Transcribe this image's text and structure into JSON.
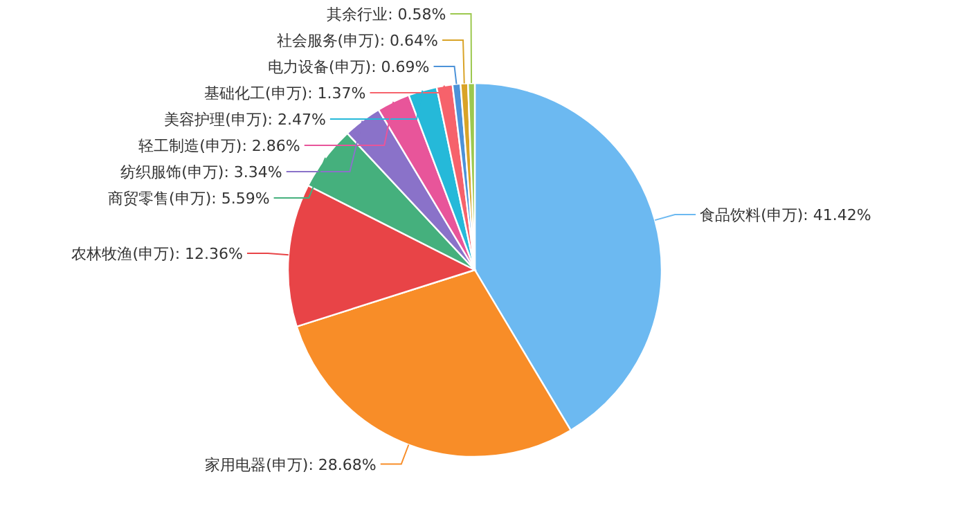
{
  "chart_data": {
    "type": "pie",
    "categories": [
      "食品饮料(申万)",
      "家用电器(申万)",
      "农林牧渔(申万)",
      "商贸零售(申万)",
      "纺织服饰(申万)",
      "轻工制造(申万)",
      "美容护理(申万)",
      "基础化工(申万)",
      "电力设备(申万)",
      "社会服务(申万)",
      "其余行业"
    ],
    "values": [
      41.42,
      28.68,
      12.36,
      5.59,
      3.34,
      2.86,
      2.47,
      1.37,
      0.69,
      0.64,
      0.58
    ],
    "colors": [
      "#6cb9f1",
      "#f88d28",
      "#e84447",
      "#45b07d",
      "#8a72c9",
      "#e8559a",
      "#25b9d9",
      "#f6626b",
      "#4c92d8",
      "#d9a327",
      "#9cc84e"
    ],
    "value_labels": [
      ": 41.42%",
      ": 28.68%",
      ": 12.36%",
      ": 5.59%",
      ": 3.34%",
      ": 2.86%",
      ": 2.47%",
      ": 1.37%",
      ": 0.69%",
      ": 0.64%",
      ": 0.58%"
    ]
  }
}
